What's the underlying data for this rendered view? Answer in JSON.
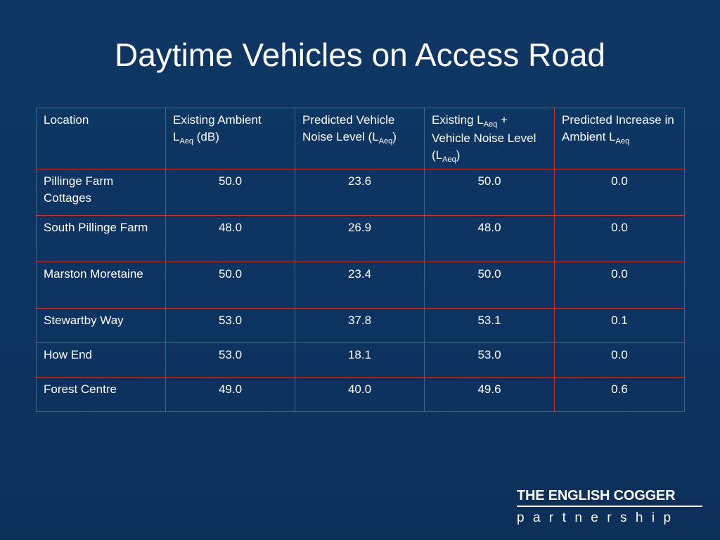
{
  "slide": {
    "title": "Daytime Vehicles on Access Road"
  },
  "table": {
    "header": {
      "location": "Location",
      "existing_ambient_line1": "Existing Ambient",
      "existing_ambient_l": "L",
      "existing_ambient_sub": "Aeq",
      "existing_ambient_unit": " (dB)",
      "predicted_vehicle_pre": "Predicted Vehicle Noise Level (L",
      "predicted_vehicle_sub": "Aeq",
      "predicted_vehicle_post": ")",
      "combined_pre": "Existing L",
      "combined_sub1": "Aeq",
      "combined_mid": " + Vehicle Noise Level (L",
      "combined_sub2": "Aeq",
      "combined_post": ")",
      "increase_pre": "Predicted Increase in Ambient L",
      "increase_sub": "Aeq"
    },
    "rows": [
      {
        "location": "Pillinge Farm Cottages",
        "existing": "50.0",
        "predicted": "23.6",
        "combined": "50.0",
        "increase": "0.0"
      },
      {
        "location": "South Pillinge Farm",
        "existing": "48.0",
        "predicted": "26.9",
        "combined": "48.0",
        "increase": "0.0"
      },
      {
        "location": "Marston Moretaine",
        "existing": "50.0",
        "predicted": "23.4",
        "combined": "50.0",
        "increase": "0.0"
      },
      {
        "location": "Stewartby Way",
        "existing": "53.0",
        "predicted": "37.8",
        "combined": "53.1",
        "increase": "0.1"
      },
      {
        "location": "How End",
        "existing": "53.0",
        "predicted": "18.1",
        "combined": "53.0",
        "increase": "0.0"
      },
      {
        "location": "Forest Centre",
        "existing": "49.0",
        "predicted": "40.0",
        "combined": "49.6",
        "increase": "0.6"
      }
    ]
  },
  "logo": {
    "line1": "THE ENGLISH COGGER",
    "line2": "partnership"
  },
  "colors": {
    "background": "#0e3562",
    "table_border": "#c8351f",
    "text": "#ffffff"
  }
}
